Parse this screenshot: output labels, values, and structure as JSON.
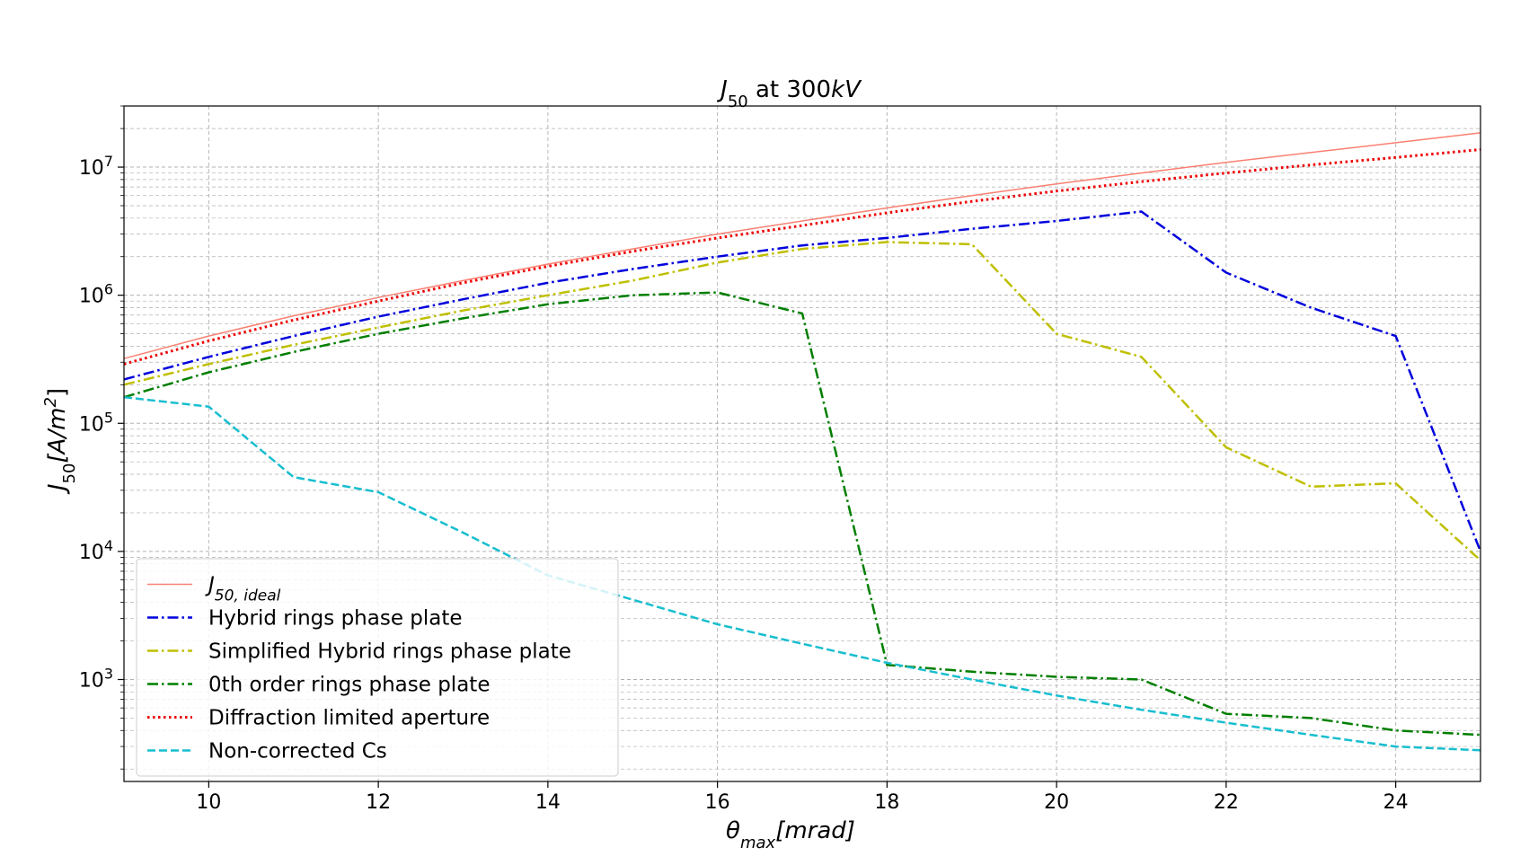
{
  "chart_data": {
    "type": "line",
    "title": {
      "base": "J",
      "sub": "50",
      "mid": " at 300",
      "unit": "kV"
    },
    "xlabel": {
      "base": "θ",
      "sub": "max",
      "rest": "[mrad]"
    },
    "ylabel": {
      "base": "J",
      "sub": "50",
      "rest": "[A/m",
      "sup": "2",
      "end": "]"
    },
    "x_scale": "linear",
    "y_scale": "log",
    "xlim": [
      9,
      25
    ],
    "ylim": [
      160,
      30000000
    ],
    "x_ticks": [
      10,
      12,
      14,
      16,
      18,
      20,
      22,
      24
    ],
    "x_tick_labels": [
      "10",
      "12",
      "14",
      "16",
      "18",
      "20",
      "22",
      "24"
    ],
    "y_ticks": [
      1000,
      10000,
      100000,
      1000000,
      10000000
    ],
    "y_tick_labels": [
      {
        "base": "10",
        "exp": "3"
      },
      {
        "base": "10",
        "exp": "4"
      },
      {
        "base": "10",
        "exp": "5"
      },
      {
        "base": "10",
        "exp": "6"
      },
      {
        "base": "10",
        "exp": "7"
      }
    ],
    "grid": true,
    "legend_position": "lower-left",
    "series": [
      {
        "name": "J_{50,ideal}",
        "legend_base": "J",
        "legend_sub": "50, ideal",
        "color": "#fa8072",
        "style": "solid",
        "width": 1.5,
        "x": [
          9,
          10,
          11,
          12,
          13,
          14,
          15,
          16,
          17,
          18,
          19,
          20,
          21,
          22,
          23,
          24,
          25
        ],
        "y": [
          320000,
          480000,
          690000,
          960000,
          1300000,
          1750000,
          2300000,
          3000000,
          3800000,
          4800000,
          6000000,
          7400000,
          9000000,
          10900000,
          13000000,
          15500000,
          18500000
        ]
      },
      {
        "name": "Hybrid rings phase plate",
        "color": "#0000dd",
        "style": "dashdot",
        "width": 2.5,
        "x": [
          9,
          10,
          11,
          12,
          13,
          14,
          15,
          16,
          17,
          18,
          19,
          20,
          21,
          22,
          23,
          24,
          25
        ],
        "y": [
          220000,
          330000,
          480000,
          680000,
          930000,
          1250000,
          1600000,
          2000000,
          2450000,
          2800000,
          3300000,
          3800000,
          4500000,
          1500000,
          800000,
          480000,
          10000
        ]
      },
      {
        "name": "Simplified Hybrid rings phase plate",
        "color": "#bfbf00",
        "style": "dashdot",
        "width": 2.5,
        "x": [
          9,
          10,
          11,
          12,
          13,
          14,
          15,
          16,
          17,
          18,
          19,
          20,
          21,
          22,
          23,
          24,
          25
        ],
        "y": [
          200000,
          290000,
          410000,
          560000,
          760000,
          1000000,
          1300000,
          1800000,
          2300000,
          2600000,
          2500000,
          500000,
          330000,
          65000,
          32000,
          34000,
          8500
        ]
      },
      {
        "name": "0th order rings phase plate",
        "color": "#007f00",
        "style": "dashdot",
        "width": 2.5,
        "x": [
          9,
          10,
          11,
          12,
          13,
          14,
          15,
          16,
          17,
          18,
          19,
          20,
          21,
          22,
          23,
          24,
          25
        ],
        "y": [
          160000,
          250000,
          360000,
          500000,
          660000,
          850000,
          1000000,
          1050000,
          720000,
          1300,
          1150,
          1050,
          1000,
          540,
          500,
          400,
          370
        ]
      },
      {
        "name": "Diffraction limited aperture",
        "color": "#ee0000",
        "style": "dotted",
        "width": 3,
        "x": [
          9,
          10,
          11,
          12,
          13,
          14,
          15,
          16,
          17,
          18,
          19,
          20,
          21,
          22,
          23,
          24,
          25
        ],
        "y": [
          290000,
          440000,
          640000,
          900000,
          1250000,
          1680000,
          2200000,
          2800000,
          3500000,
          4400000,
          5400000,
          6500000,
          7700000,
          9000000,
          10400000,
          11900000,
          13700000
        ]
      },
      {
        "name": "Non-corrected Cs",
        "color": "#17becf",
        "style": "dashed",
        "width": 2.5,
        "x": [
          9,
          10,
          11,
          12,
          13,
          14,
          15,
          16,
          17,
          18,
          19,
          20,
          21,
          22,
          23,
          24,
          25
        ],
        "y": [
          160000,
          135000,
          38000,
          29000,
          14000,
          6500,
          4200,
          2700,
          1900,
          1350,
          1000,
          750,
          580,
          460,
          370,
          300,
          280
        ]
      }
    ]
  }
}
